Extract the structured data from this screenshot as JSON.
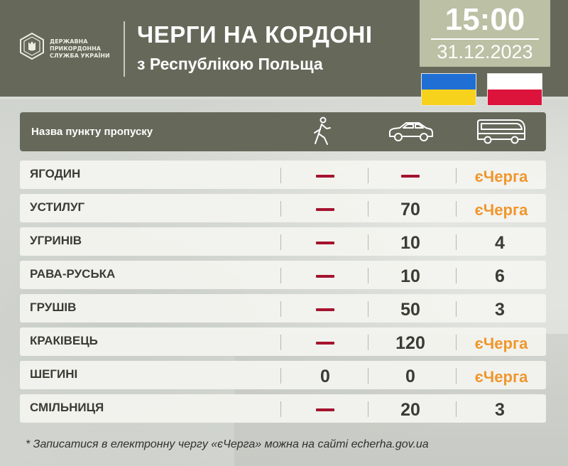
{
  "header": {
    "agency_lines": [
      "ДЕРЖАВНА",
      "ПРИКОРДОННА",
      "СЛУЖБА УКРАЇНИ"
    ],
    "title": "ЧЕРГИ НА КОРДОНІ",
    "subtitle": "з Республікою Польща",
    "time": "15:00",
    "date": "31.12.2023"
  },
  "flags": [
    "ukraine-flag",
    "poland-flag"
  ],
  "table": {
    "header_label": "Назва пункту пропуску",
    "columns": [
      {
        "icon": "pedestrian-icon"
      },
      {
        "icon": "car-icon"
      },
      {
        "icon": "bus-icon"
      }
    ],
    "rows": [
      {
        "name": "ЯГОДИН",
        "pedestrians": "—",
        "cars": "—",
        "buses": "єЧерга"
      },
      {
        "name": "УСТИЛУГ",
        "pedestrians": "—",
        "cars": "70",
        "buses": "єЧерга"
      },
      {
        "name": "УГРИНІВ",
        "pedestrians": "—",
        "cars": "10",
        "buses": "4"
      },
      {
        "name": "РАВА-РУСЬКА",
        "pedestrians": "—",
        "cars": "10",
        "buses": "6"
      },
      {
        "name": "ГРУШІВ",
        "pedestrians": "—",
        "cars": "50",
        "buses": "3"
      },
      {
        "name": "КРАКІВЕЦЬ",
        "pedestrians": "—",
        "cars": "120",
        "buses": "єЧерга"
      },
      {
        "name": "ШЕГИНІ",
        "pedestrians": "0",
        "cars": "0",
        "buses": "єЧерга"
      },
      {
        "name": "СМІЛЬНИЦЯ",
        "pedestrians": "—",
        "cars": "20",
        "buses": "3"
      }
    ]
  },
  "footnote": "* Записатися в електронну чергу «єЧерга» можна на сайті echerha.gov.ua",
  "colors": {
    "header_bg": "#66695a",
    "time_box_bg": "#bcc0a4",
    "dash": "#a5132e",
    "echerga": "#f0962c",
    "text_dark": "#3a3c34"
  }
}
